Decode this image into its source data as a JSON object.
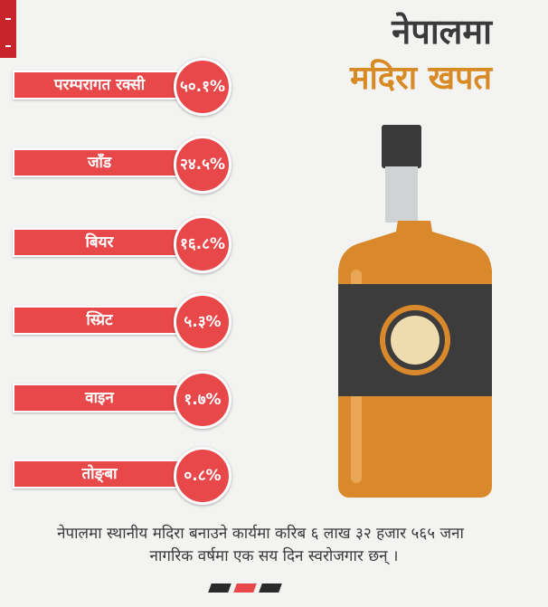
{
  "header": {
    "title_line1": "नेपालमा",
    "title_line2": "मदिरा खपत"
  },
  "consumption": [
    {
      "label": "परम्परागत रक्सी",
      "percent": "५०.१%",
      "value": 50.1
    },
    {
      "label": "जाँड",
      "percent": "२४.५%",
      "value": 24.5
    },
    {
      "label": "बियर",
      "percent": "१६.८%",
      "value": 16.8
    },
    {
      "label": "स्प्रिट",
      "percent": "५.३%",
      "value": 5.3
    },
    {
      "label": "वाइन",
      "percent": "१.७%",
      "value": 1.7
    },
    {
      "label": "तोङ्बा",
      "percent": "०.८%",
      "value": 0.8
    }
  ],
  "caption": {
    "line1": "नेपालमा स्थानीय मदिरा बनाउने कार्यमा करिब ६ लाख ३२ हजार ५६५ जना",
    "line2": "नागरिक वर्षमा एक सय दिन स्वरोजगार छन् ।"
  },
  "colors": {
    "bar": "#e8484a",
    "title_accent": "#d88a25",
    "title_dark": "#3a3a3a",
    "bottle_body": "#d9892b",
    "bottle_label": "#3c3c3c",
    "bottle_neck": "#cfd3d3",
    "bottle_cap": "#3a3a3a",
    "label_circle": "#efdcae",
    "pager_dot_active": "#e8484a",
    "pager_dot": "#2a2a2a"
  },
  "icons": {
    "bottle": "liquor-bottle-icon"
  }
}
